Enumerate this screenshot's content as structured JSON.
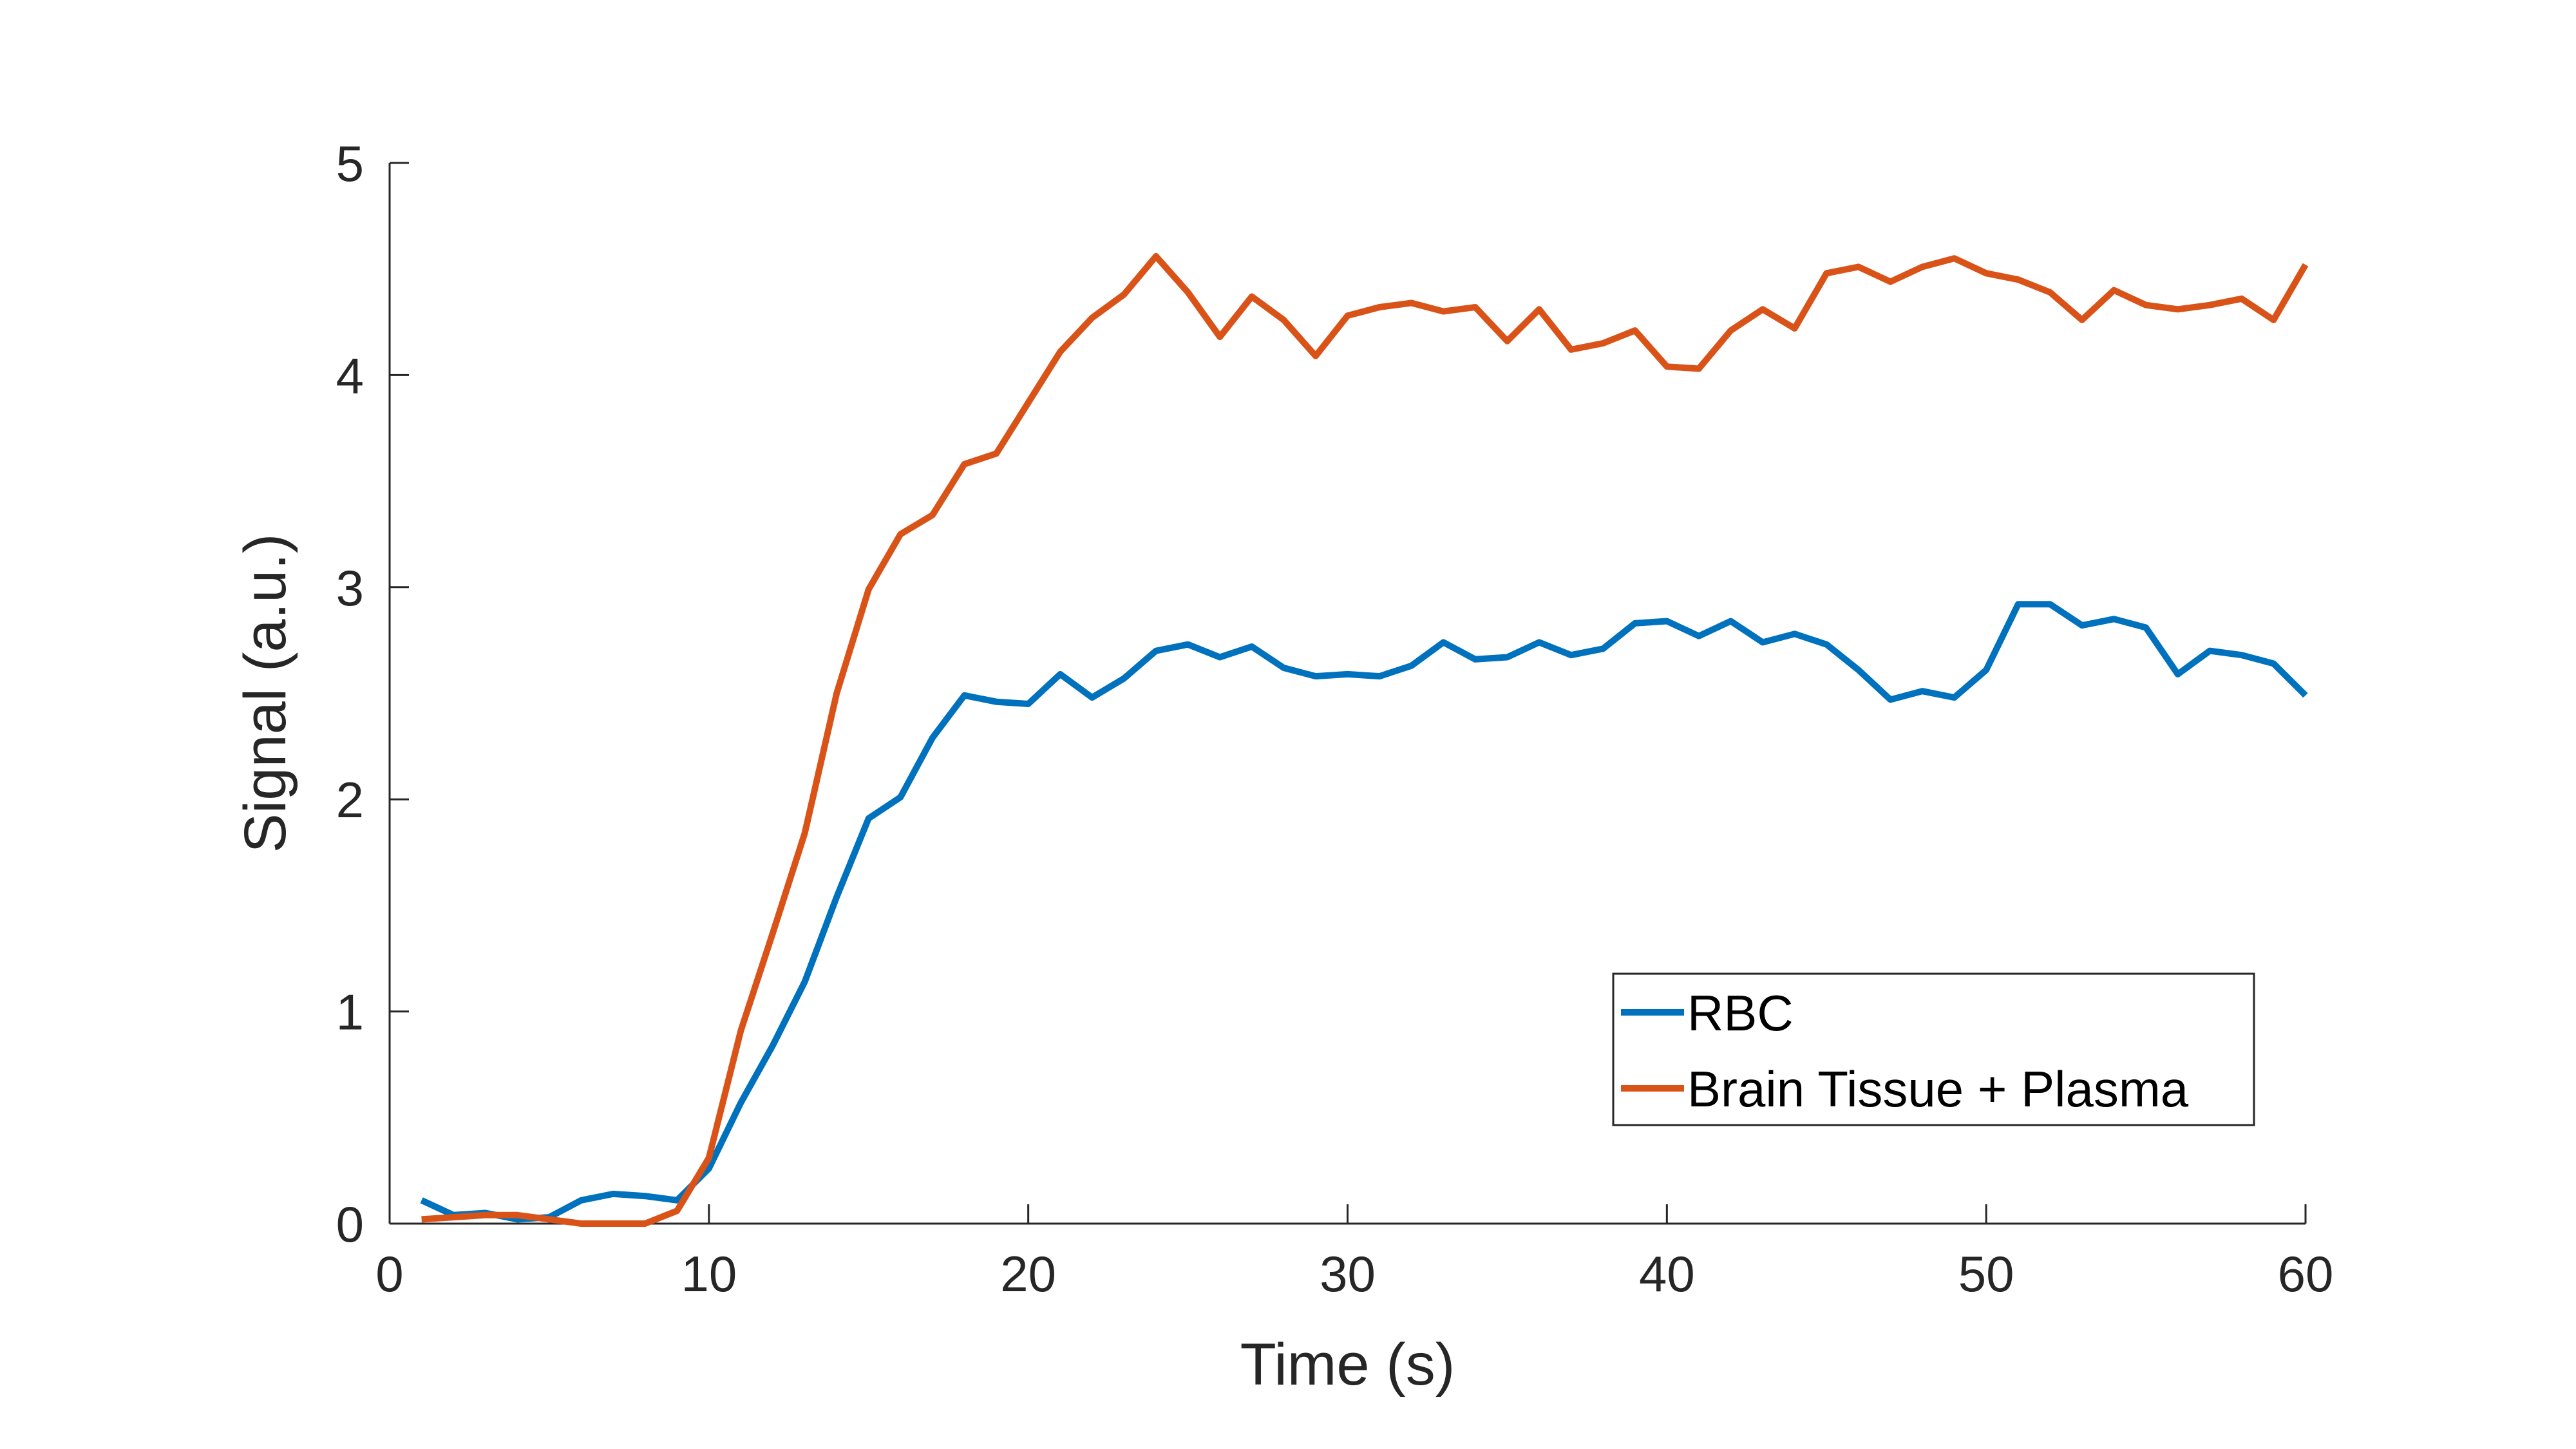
{
  "chart_data": {
    "type": "line",
    "title": "",
    "xlabel": "Time (s)",
    "ylabel": "Signal (a.u.)",
    "xlim": [
      0,
      60
    ],
    "ylim": [
      0,
      5
    ],
    "xticks": [
      0,
      10,
      20,
      30,
      40,
      50,
      60
    ],
    "yticks": [
      0,
      1,
      2,
      3,
      4,
      5
    ],
    "grid": false,
    "legend_position": "bottom-right",
    "x": [
      1,
      2,
      3,
      4,
      5,
      6,
      7,
      8,
      9,
      10,
      11,
      12,
      13,
      14,
      15,
      16,
      17,
      18,
      19,
      20,
      21,
      22,
      23,
      24,
      25,
      26,
      27,
      28,
      29,
      30,
      31,
      32,
      33,
      34,
      35,
      36,
      37,
      38,
      39,
      40,
      41,
      42,
      43,
      44,
      45,
      46,
      47,
      48,
      49,
      50,
      51,
      52,
      53,
      54,
      55,
      56,
      57,
      58,
      59,
      60
    ],
    "series": [
      {
        "name": "RBC",
        "color": "#0072BD",
        "values": [
          0.11,
          0.04,
          0.05,
          0.02,
          0.03,
          0.11,
          0.14,
          0.13,
          0.11,
          0.26,
          0.57,
          0.84,
          1.14,
          1.54,
          1.91,
          2.01,
          2.29,
          2.49,
          2.46,
          2.45,
          2.59,
          2.48,
          2.57,
          2.7,
          2.73,
          2.67,
          2.72,
          2.62,
          2.58,
          2.59,
          2.58,
          2.63,
          2.74,
          2.66,
          2.67,
          2.74,
          2.68,
          2.71,
          2.83,
          2.84,
          2.77,
          2.84,
          2.74,
          2.78,
          2.73,
          2.61,
          2.47,
          2.51,
          2.48,
          2.61,
          2.92,
          2.92,
          2.82,
          2.85,
          2.81,
          2.59,
          2.7,
          2.68,
          2.64,
          2.49
        ]
      },
      {
        "name": "Brain Tissue + Plasma",
        "color": "#D95319",
        "values": [
          0.02,
          0.03,
          0.04,
          0.04,
          0.02,
          0.0,
          0.0,
          0.0,
          0.06,
          0.31,
          0.91,
          1.37,
          1.84,
          2.5,
          2.99,
          3.25,
          3.34,
          3.58,
          3.63,
          3.87,
          4.11,
          4.27,
          4.38,
          4.56,
          4.39,
          4.18,
          4.37,
          4.26,
          4.09,
          4.28,
          4.32,
          4.34,
          4.3,
          4.32,
          4.16,
          4.31,
          4.12,
          4.15,
          4.21,
          4.04,
          4.03,
          4.21,
          4.31,
          4.22,
          4.48,
          4.51,
          4.44,
          4.51,
          4.55,
          4.48,
          4.45,
          4.39,
          4.26,
          4.4,
          4.33,
          4.31,
          4.33,
          4.36,
          4.26,
          4.52
        ]
      }
    ]
  }
}
